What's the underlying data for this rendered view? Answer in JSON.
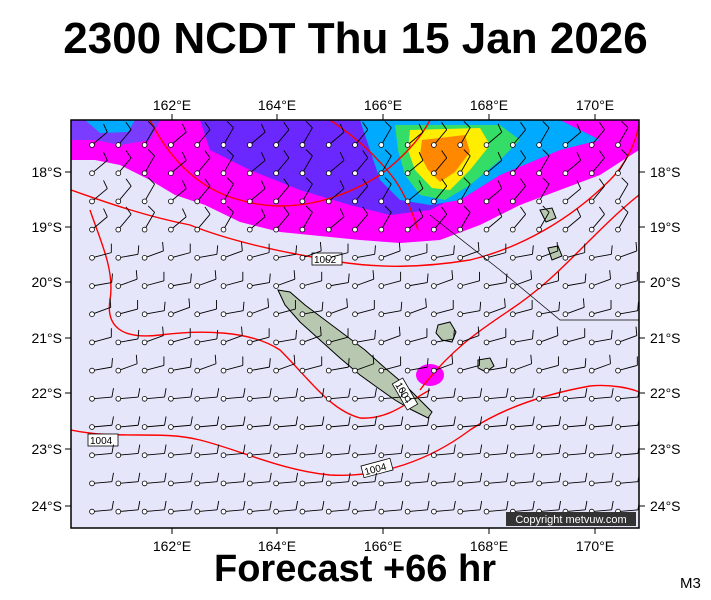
{
  "title": "2300 NCDT Thu 15 Jan 2026",
  "footer": "Forecast +66 hr",
  "model_code": "M3",
  "copyright": "Copyright metvuw.com",
  "axes": {
    "lon_labels": [
      "162°E",
      "164°E",
      "166°E",
      "168°E",
      "170°E"
    ],
    "lat_labels": [
      "18°S",
      "19°S",
      "20°S",
      "21°S",
      "22°S",
      "23°S",
      "24°S"
    ]
  },
  "isobar_labels": [
    "1002",
    "1004",
    "1004",
    "1004"
  ],
  "colors": {
    "ocean": "#e6e6fb",
    "magenta": "#ff00ff",
    "isobar": "#ff0000",
    "land": "#b8c8b0",
    "wind_barb": "#000000"
  }
}
